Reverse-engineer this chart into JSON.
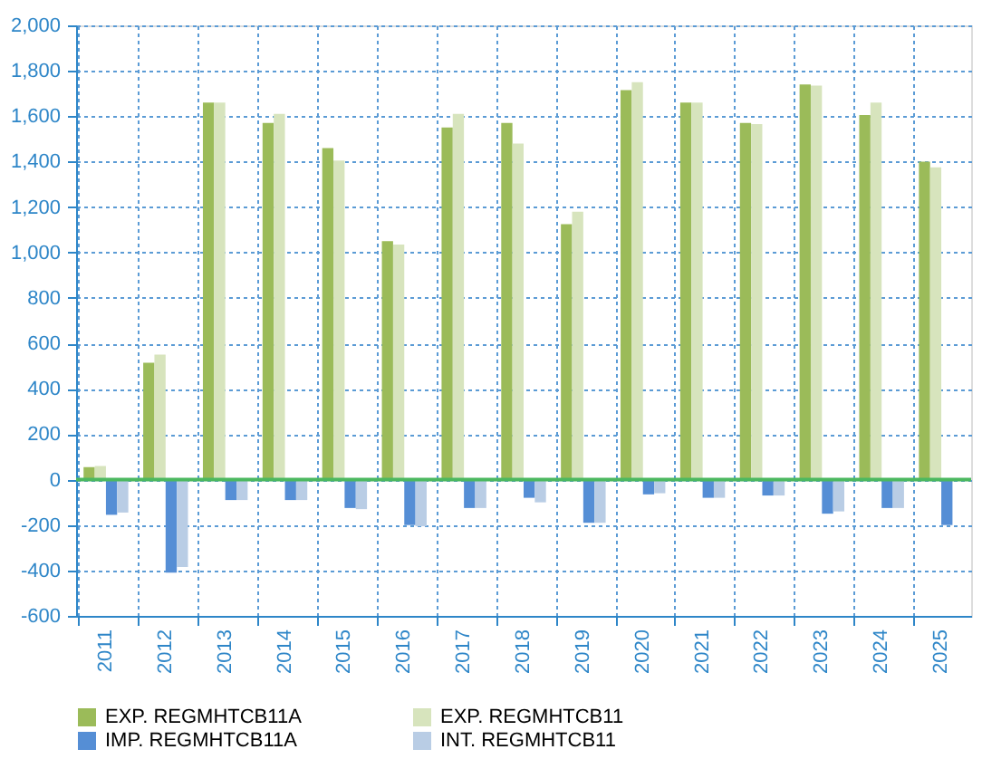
{
  "chart_data": {
    "type": "bar",
    "categories": [
      "2011",
      "2012",
      "2013",
      "2014",
      "2015",
      "2016",
      "2017",
      "2018",
      "2019",
      "2020",
      "2021",
      "2022",
      "2023",
      "2024",
      "2025"
    ],
    "series": [
      {
        "name": "EXP. REGMHTCB11A",
        "color": "#9bbb59",
        "values": [
          55,
          515,
          1660,
          1570,
          1460,
          1050,
          1550,
          1570,
          1125,
          1715,
          1660,
          1570,
          1740,
          1605,
          1400
        ]
      },
      {
        "name": "EXP. REGMHTCB11",
        "color": "#d7e4bd",
        "values": [
          60,
          550,
          1660,
          1610,
          1405,
          1035,
          1610,
          1480,
          1180,
          1750,
          1660,
          1565,
          1735,
          1660,
          1375
        ]
      },
      {
        "name": "IMP. REGMHTCB11A",
        "color": "#558ed5",
        "values": [
          -155,
          -410,
          -90,
          -90,
          -125,
          -200,
          -125,
          -80,
          -190,
          -65,
          -80,
          -70,
          -150,
          -125,
          -200
        ]
      },
      {
        "name": "INT. REGMHTCB11",
        "color": "#b9cde5",
        "values": [
          -145,
          -385,
          -90,
          -90,
          -130,
          -205,
          -125,
          -100,
          -190,
          -60,
          -80,
          -70,
          -140,
          -125,
          null
        ]
      }
    ],
    "ylim": [
      -600,
      2000
    ],
    "yticks": [
      {
        "value": -600,
        "label": "-600"
      },
      {
        "value": -400,
        "label": "-400"
      },
      {
        "value": -200,
        "label": "-200"
      },
      0,
      200,
      400,
      600,
      800,
      {
        "value": 1000,
        "label": "1,000"
      },
      {
        "value": 1200,
        "label": "1,200"
      },
      {
        "value": 1400,
        "label": "1,400"
      },
      {
        "value": 1600,
        "label": "1,600"
      },
      {
        "value": 1800,
        "label": "1,800"
      },
      {
        "value": 2000,
        "label": "2,000"
      }
    ],
    "ref_lines": [
      {
        "axis": "y",
        "value": 0,
        "color": "#4cb860"
      }
    ],
    "grid": true,
    "legend": "bottom"
  }
}
